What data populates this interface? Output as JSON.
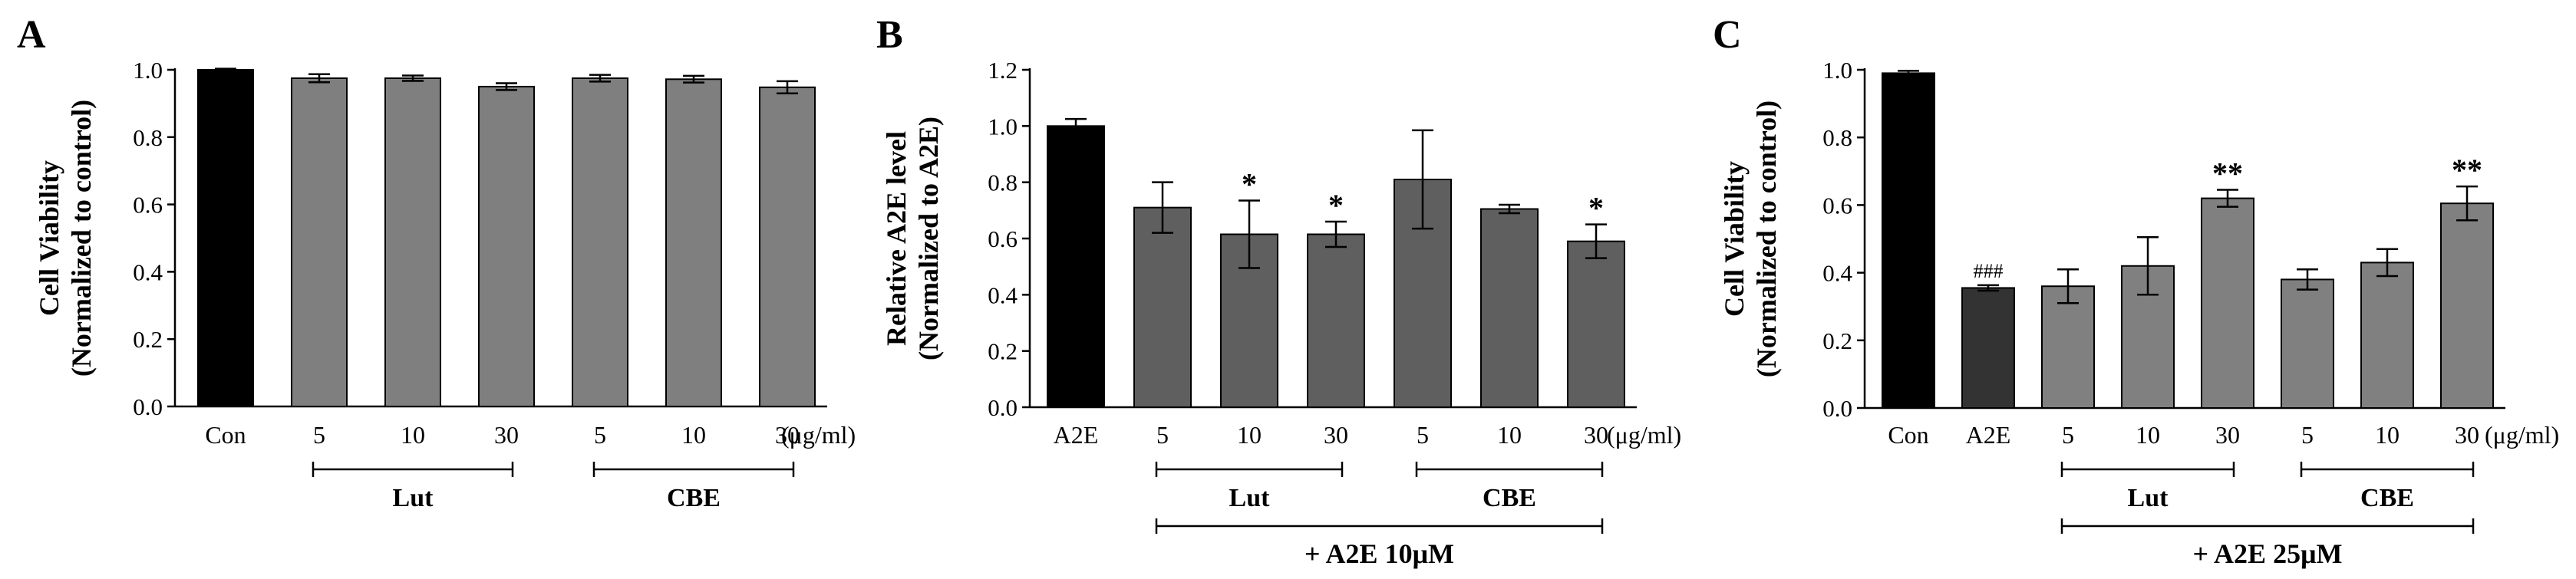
{
  "chart_data": [
    {
      "panel_label": "A",
      "type": "bar",
      "ylabel": [
        "Cell Viability",
        "(Normalized to control)"
      ],
      "ylim": [
        0,
        1.0
      ],
      "ytick_labels": [
        "0.0",
        "0.2",
        "0.4",
        "0.6",
        "0.8",
        "1.0"
      ],
      "categories": [
        "Con",
        "5",
        "10",
        "30",
        "5",
        "10",
        "30"
      ],
      "values": [
        1.0,
        0.975,
        0.975,
        0.95,
        0.975,
        0.972,
        0.948
      ],
      "errors": [
        0.003,
        0.012,
        0.008,
        0.01,
        0.01,
        0.01,
        0.018
      ],
      "bar_colors": [
        "#000000",
        "#7f7f7f",
        "#7f7f7f",
        "#7f7f7f",
        "#7f7f7f",
        "#7f7f7f",
        "#7f7f7f"
      ],
      "annotations": [
        "",
        "",
        "",
        "",
        "",
        "",
        ""
      ],
      "unit": "(μg/ml)",
      "groups": [
        {
          "label": "Lut",
          "from": 1,
          "to": 3
        },
        {
          "label": "CBE",
          "from": 4,
          "to": 6
        }
      ],
      "condition": null
    },
    {
      "panel_label": "B",
      "type": "bar",
      "ylabel": [
        "Relative A2E level",
        "(Normalized to A2E)"
      ],
      "ylim": [
        0,
        1.2
      ],
      "ytick_labels": [
        "0.0",
        "0.2",
        "0.4",
        "0.6",
        "0.8",
        "1.0",
        "1.2"
      ],
      "categories": [
        "A2E",
        "5",
        "10",
        "30",
        "5",
        "10",
        "30"
      ],
      "values": [
        1.0,
        0.71,
        0.615,
        0.615,
        0.81,
        0.705,
        0.59
      ],
      "errors": [
        0.025,
        0.09,
        0.12,
        0.045,
        0.175,
        0.015,
        0.06
      ],
      "bar_colors": [
        "#000000",
        "#5f5f5f",
        "#5f5f5f",
        "#5f5f5f",
        "#5f5f5f",
        "#5f5f5f",
        "#5f5f5f"
      ],
      "annotations": [
        "",
        "",
        "*",
        "*",
        "",
        "",
        "*"
      ],
      "unit": "(μg/ml)",
      "groups": [
        {
          "label": "Lut",
          "from": 1,
          "to": 3
        },
        {
          "label": "CBE",
          "from": 4,
          "to": 6
        }
      ],
      "condition": {
        "label": "+ A2E 10μM",
        "from": 1,
        "to": 6
      }
    },
    {
      "panel_label": "C",
      "type": "bar",
      "ylabel": [
        "Cell Viability",
        "(Normalized to control)"
      ],
      "ylim": [
        0,
        1.0
      ],
      "ytick_labels": [
        "0.0",
        "0.2",
        "0.4",
        "0.6",
        "0.8",
        "1.0"
      ],
      "categories": [
        "Con",
        "A2E",
        "5",
        "10",
        "30",
        "5",
        "10",
        "30"
      ],
      "values": [
        0.99,
        0.355,
        0.36,
        0.42,
        0.62,
        0.38,
        0.43,
        0.605
      ],
      "errors": [
        0.007,
        0.008,
        0.05,
        0.085,
        0.025,
        0.03,
        0.04,
        0.05
      ],
      "bar_colors": [
        "#000000",
        "#333333",
        "#808080",
        "#808080",
        "#808080",
        "#808080",
        "#808080",
        "#808080"
      ],
      "annotations": [
        "",
        "###",
        "",
        "",
        "**",
        "",
        "",
        "**"
      ],
      "unit": "(μg/ml)",
      "groups": [
        {
          "label": "Lut",
          "from": 2,
          "to": 4
        },
        {
          "label": "CBE",
          "from": 5,
          "to": 7
        }
      ],
      "condition": {
        "label": "+ A2E 25μM",
        "from": 2,
        "to": 7
      }
    }
  ]
}
